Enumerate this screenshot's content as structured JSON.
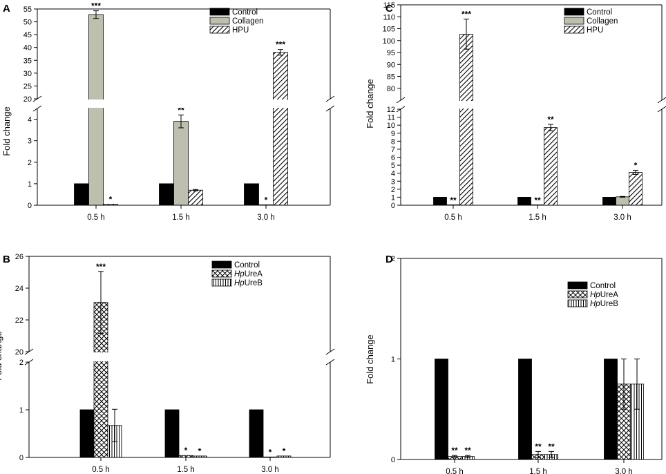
{
  "chart_data": [
    {
      "panel": "A",
      "type": "bar",
      "ylabel": "Fold change",
      "categories": [
        "0.5 h",
        "1.5 h",
        "3.0 h"
      ],
      "axis_break": {
        "lower": [
          0,
          4.5
        ],
        "upper": [
          20,
          55
        ]
      },
      "yticks_lower": [
        0,
        1,
        2,
        3,
        4
      ],
      "yticks_upper": [
        20,
        25,
        30,
        35,
        40,
        45,
        50,
        55
      ],
      "legend": "top-right",
      "series": [
        {
          "name": "Control",
          "pattern": "solid",
          "values": [
            1,
            1,
            1
          ],
          "errors": [
            0,
            0,
            0
          ],
          "sig": [
            "",
            "",
            ""
          ]
        },
        {
          "name": "Collagen",
          "pattern": "gray",
          "values": [
            52.8,
            3.9,
            0.02
          ],
          "errors": [
            1.5,
            0.3,
            0
          ],
          "sig": [
            "***",
            "**",
            "*"
          ]
        },
        {
          "name": "HPU",
          "pattern": "diagonal",
          "values": [
            0.05,
            0.7,
            38.1
          ],
          "errors": [
            0,
            0.03,
            1.1
          ],
          "sig": [
            "*",
            "",
            "***"
          ]
        }
      ]
    },
    {
      "panel": "C",
      "type": "bar",
      "ylabel": "Fold change",
      "categories": [
        "0.5 h",
        "1.5 h",
        "3.0 h"
      ],
      "axis_break": {
        "lower": [
          0,
          12
        ],
        "upper": [
          75,
          115
        ]
      },
      "yticks_lower": [
        0,
        1,
        2,
        3,
        4,
        5,
        6,
        7,
        8,
        9,
        10,
        11,
        12
      ],
      "yticks_upper": [
        80,
        85,
        90,
        95,
        100,
        105,
        110,
        115
      ],
      "legend": "top-right",
      "series": [
        {
          "name": "Control",
          "pattern": "solid",
          "values": [
            1,
            1,
            1
          ],
          "errors": [
            0,
            0,
            0
          ],
          "sig": [
            "",
            "",
            ""
          ]
        },
        {
          "name": "Collagen",
          "pattern": "gray",
          "values": [
            0.02,
            0.02,
            1.05
          ],
          "errors": [
            0,
            0,
            0.05
          ],
          "sig": [
            "**",
            "**",
            ""
          ]
        },
        {
          "name": "HPU",
          "pattern": "diagonal",
          "values": [
            102.7,
            9.7,
            4.1
          ],
          "errors": [
            6.3,
            0.4,
            0.25
          ],
          "sig": [
            "***",
            "**",
            "*"
          ]
        }
      ]
    },
    {
      "panel": "B",
      "type": "bar",
      "ylabel": "Fold change",
      "categories": [
        "0.5 h",
        "1.5 h",
        "3.0 h"
      ],
      "axis_break": {
        "lower": [
          0,
          2
        ],
        "upper": [
          20,
          26
        ]
      },
      "yticks_lower": [
        0,
        1,
        2
      ],
      "yticks_upper": [
        20,
        22,
        24,
        26
      ],
      "legend": "top-right",
      "series": [
        {
          "name": "Control",
          "pattern": "solid",
          "values": [
            1,
            1,
            1
          ],
          "errors": [
            0,
            0,
            0
          ],
          "sig": [
            "",
            "",
            ""
          ]
        },
        {
          "name": "HpUreA",
          "pattern": "crosshatch",
          "values": [
            23.1,
            0.04,
            0.01
          ],
          "errors": [
            1.95,
            0,
            0
          ],
          "sig": [
            "***",
            "*",
            "*"
          ]
        },
        {
          "name": "HpUreB",
          "pattern": "vertical",
          "values": [
            0.67,
            0.03,
            0.03
          ],
          "errors": [
            0.34,
            0,
            0
          ],
          "sig": [
            "",
            "*",
            "*"
          ]
        }
      ]
    },
    {
      "panel": "D",
      "type": "bar",
      "ylabel": "Fold change",
      "categories": [
        "0.5 h",
        "1.5 h",
        "3.0 h"
      ],
      "ylim": [
        0,
        2
      ],
      "yticks": [
        0,
        1,
        2
      ],
      "legend": "top-right",
      "series": [
        {
          "name": "Control",
          "pattern": "solid",
          "values": [
            1,
            1,
            1
          ],
          "errors": [
            0,
            0,
            0
          ],
          "sig": [
            "",
            "",
            ""
          ]
        },
        {
          "name": "HpUreA",
          "pattern": "crosshatch",
          "values": [
            0.03,
            0.05,
            0.75
          ],
          "errors": [
            0.01,
            0.03,
            0.25
          ],
          "sig": [
            "**",
            "**",
            ""
          ]
        },
        {
          "name": "HpUreB",
          "pattern": "vertical",
          "values": [
            0.03,
            0.05,
            0.75
          ],
          "errors": [
            0.01,
            0.03,
            0.25
          ],
          "sig": [
            "**",
            "**",
            ""
          ]
        }
      ]
    }
  ]
}
